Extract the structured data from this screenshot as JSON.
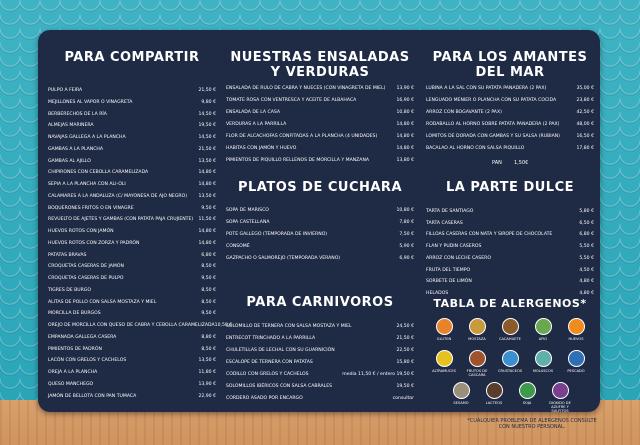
{
  "sections": [
    {
      "title": "PARA COMPARTIR",
      "items": [
        {
          "name": "PULPO A FEIRA",
          "price": "21,50 €"
        },
        {
          "name": "MEJILLONES AL VAPOR O VINAGRETA",
          "price": "9,80 €"
        },
        {
          "name": "BERBERECHOS DE LA RÍA",
          "price": "14,50 €"
        },
        {
          "name": "ALMEJAS MARINERA",
          "price": "19,50 €"
        },
        {
          "name": "NAVAJAS GALLEGA A LA PLANCHA",
          "price": "14,50 €"
        },
        {
          "name": "GAMBAS A LA PLANCHA",
          "price": "21,50 €"
        },
        {
          "name": "GAMBAS AL AJILLO",
          "price": "13,50 €"
        },
        {
          "name": "CHIPIRONES CON CEBOLLA CARAMELIZADA",
          "price": "14,80 €"
        },
        {
          "name": "SEPIA A LA PLANCHA CON ALI-OLI",
          "price": "14,80 €"
        },
        {
          "name": "CALAMARES A LA ANDALUZA (C/ MAYONESA DE AJO NEGRO)",
          "price": "13,50 €"
        },
        {
          "name": "BOQUERONES FRITOS O EN VINAGRE",
          "price": "9,50 €"
        },
        {
          "name": "REVUELTO DE AJETES Y GAMBAS (CON PATATA PAJA CRUJIENTE)",
          "price": "11,50 €"
        },
        {
          "name": "HUEVOS ROTOS CON JAMÓN",
          "price": "14,80 €"
        },
        {
          "name": "HUEVOS ROTOS CON ZORZA Y PADRÓN",
          "price": "14,80 €"
        },
        {
          "name": "PATATAS BRAVAS",
          "price": "6,80 €"
        },
        {
          "name": "CROQUETAS CASERAS DE JAMÓN",
          "price": "8,50 €"
        },
        {
          "name": "CROQUETAS CASERAS DE PULPO",
          "price": "9,50 €"
        },
        {
          "name": "TIGRES DE BURGO",
          "price": "8,50 €"
        },
        {
          "name": "ALITAS DE POLLO CON SALSA MOSTAZA Y MIEL",
          "price": "8,50 €"
        },
        {
          "name": "MORCILLA DE BURGOS",
          "price": "9,50 €"
        },
        {
          "name": "OREJO DE MORCILLA CON QUESO DE CABRA Y CEBOLLA CARAMELIZADA",
          "price": "10,50 €"
        },
        {
          "name": "EMPANADA GALLEGA CASERA",
          "price": "8,80 €"
        },
        {
          "name": "PIMIENTOS DE PADRÓN",
          "price": "8,50 €"
        },
        {
          "name": "LACÓN CON GRELOS Y CACHELOS",
          "price": "13,50 €"
        },
        {
          "name": "OREJA A LA PLANCHA",
          "price": "11,80 €"
        },
        {
          "name": "QUESO MANCHEGO",
          "price": "13,90 €"
        },
        {
          "name": "JAMÓN DE BELLOTA CON PAN TUMACA",
          "price": "22,90 €"
        }
      ]
    },
    {
      "title": "NUESTRAS ENSALADAS Y VERDURAS",
      "items": [
        {
          "name": "ENSALADA DE RULO DE CABRA Y NUECES (CON VINAGRETA DE MIEL)",
          "price": "13,90 €"
        },
        {
          "name": "TOMATE ROSA CON VENTRESCA Y ACEITE DE ALBAHACA",
          "price": "16,90 €"
        },
        {
          "name": "ENSALADA DE LA CASA",
          "price": "10,80 €"
        },
        {
          "name": "VERDURAS A LA PARRILLA",
          "price": "14,80 €"
        },
        {
          "name": "FLOR DE ALCACHOFAS CONFITADAS A LA PLANCHA (4 UNIDADES)",
          "price": "14,80 €"
        },
        {
          "name": "HABITAS CON JAMÓN Y HUEVO",
          "price": "14,80 €"
        },
        {
          "name": "PIMIENTOS DE PIQUILLO RELLENOS DE MORCILLA Y MANZANA",
          "price": "13,80 €"
        }
      ]
    },
    {
      "title": "PLATOS DE CUCHARA",
      "items": [
        {
          "name": "SOPA DE MARISCO",
          "price": "10,80 €"
        },
        {
          "name": "SOPA CASTELLANA",
          "price": "7,80 €"
        },
        {
          "name": "POTE GALLEGO (TEMPORADA DE INVIERNO)",
          "price": "7,50 €"
        },
        {
          "name": "CONSOMÉ",
          "price": "5,90 €"
        },
        {
          "name": "GAZPACHO O SALMOREJO (TEMPORADA VERANO)",
          "price": "6,90 €"
        }
      ]
    },
    {
      "title": "PARA CARNIVOROS",
      "items": [
        {
          "name": "SOLOMILLO DE TERNERA CON SALSA MOSTAZA Y MIEL",
          "price": "24,50 €"
        },
        {
          "name": "ENTRECOT TRINCHADO A LA PARRILLA",
          "price": "21,50 €"
        },
        {
          "name": "CHULETILLAS DE LECHAL CON SU GUARNICIÓN",
          "price": "22,50 €"
        },
        {
          "name": "ESCALOPE DE TERNERA CON PATATAS",
          "price": "15,80 €"
        },
        {
          "name": "CODILLO CON GRELOS Y CACHELOS",
          "price": "media 11,50 € / entero 19,50 €"
        },
        {
          "name": "SOLOMILLOS IBÉRICOS CON SALSA CABRALES",
          "price": "19,50 €"
        },
        {
          "name": "CORDERO ASADO POR ENCARGO",
          "price": "consultar"
        }
      ]
    },
    {
      "title": "PARA LOS AMANTES DEL MAR",
      "items": [
        {
          "name": "LUBINA A LA SAL CON SU PATATA PANADERA (2 PAX)",
          "price": "35,00 €"
        },
        {
          "name": "LENGUADO MENIER O PLANCHA CON SU PATATA COCIDA",
          "price": "23,80 €"
        },
        {
          "name": "ARROZ CON BOGAVANTE (2 PAX)",
          "price": "42,50 €"
        },
        {
          "name": "RODABALLO AL HORNO SOBRE PATATA PANADERA (2 PAX)",
          "price": "48,00 €"
        },
        {
          "name": "LOMITOS DE DORADA CON GAMBAS Y SU SALSA (RUBIAN)",
          "price": "16,50 €"
        },
        {
          "name": "BACALAO AL HORNO CON SALSA PIQUILLO",
          "price": "17,80 €"
        }
      ]
    },
    {
      "title": "LA PARTE DULCE",
      "items": [
        {
          "name": "TARTA DE SANTIAGO",
          "price": "5,80 €"
        },
        {
          "name": "TARTA CASERAS",
          "price": "6,50 €"
        },
        {
          "name": "FILLOAS CASERAS CON NATA Y SIROPE DE CHOCOLATE",
          "price": "6,80 €"
        },
        {
          "name": "FLAN Y PUDIN CASEROS",
          "price": "5,50 €"
        },
        {
          "name": "ARROZ CON LECHE CASERO",
          "price": "5,50 €"
        },
        {
          "name": "FRUTA DEL TIEMPO",
          "price": "4,50 €"
        },
        {
          "name": "SORBETE DE LIMÓN",
          "price": "4,80 €"
        },
        {
          "name": "HELADOS",
          "price": "4,80 €"
        }
      ]
    }
  ],
  "bread": {
    "name": "PAN",
    "price": "1,50€"
  },
  "allergens": {
    "title": "TABLA DE ALERGENOS*",
    "items": [
      {
        "name": "GLUTEN",
        "color": "#e8832a"
      },
      {
        "name": "MOSTAZA",
        "color": "#c89a3a"
      },
      {
        "name": "CACAHUETE",
        "color": "#8a5a2b"
      },
      {
        "name": "APIO",
        "color": "#6aa84f"
      },
      {
        "name": "HUEVOS",
        "color": "#f08c1e"
      },
      {
        "name": "ALTRAMUCES",
        "color": "#e6c21f"
      },
      {
        "name": "FRUTOS DE CASCARA",
        "color": "#a0522d"
      },
      {
        "name": "CRUSTACEOS",
        "color": "#3a8fd0"
      },
      {
        "name": "MOLUSCOS",
        "color": "#5fb0a8"
      },
      {
        "name": "PESCADO",
        "color": "#2f6fb5"
      },
      {
        "name": "SESAMO",
        "color": "#9a8f7a"
      },
      {
        "name": "LACTEOS",
        "color": "#5a3d2a"
      },
      {
        "name": "SOJA",
        "color": "#3d9a4a"
      },
      {
        "name": "DIOXIDO DE AZUFRE Y SULFITOS",
        "color": "#7a3f8f"
      }
    ]
  },
  "note": "*CUALQUIER PROBLEMA DE ALERGENOS CONSULTE CON NUESTRO PERSONAL."
}
